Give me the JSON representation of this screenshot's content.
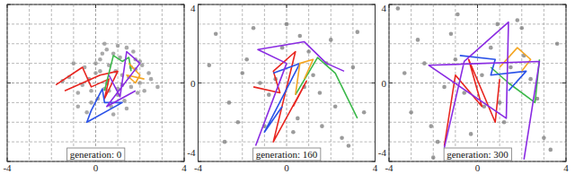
{
  "chart_data": [
    {
      "type": "scatter",
      "annotation": "generation: 0",
      "xlim": [
        -4,
        4
      ],
      "ylim": [
        -4,
        4
      ],
      "xticks": [
        -4,
        0,
        4
      ],
      "yticks": [
        -4,
        0,
        4
      ],
      "grid": true,
      "tick_labels": "x",
      "series": [
        {
          "type": "scatter",
          "color": "#8c8c8c",
          "x": [
            -1.2,
            -0.8,
            -0.5,
            -0.2,
            0.0,
            0.2,
            0.4,
            0.6,
            0.8,
            1.0,
            1.2,
            1.4,
            1.6,
            1.8,
            2.0,
            2.2,
            2.5,
            -1.0,
            -0.6,
            -0.3,
            0.1,
            0.3,
            0.5,
            0.7,
            0.9,
            1.1,
            1.3,
            1.5,
            1.7,
            1.9,
            2.1,
            2.4,
            2.8,
            -1.5,
            -0.4,
            0.2,
            0.6,
            1.0,
            1.4,
            1.8,
            0.0,
            0.8,
            1.6,
            -0.8,
            0.4,
            1.2,
            2.0,
            0.5,
            1.0,
            -0.2
          ],
          "values": [
            0.3,
            -0.5,
            0.8,
            -1.0,
            0.5,
            1.2,
            -0.3,
            0.9,
            1.5,
            -0.6,
            0.4,
            1.8,
            -0.2,
            0.7,
            1.1,
            -0.4,
            0.2,
            1.0,
            -0.1,
            0.2,
            -0.8,
            1.5,
            0.0,
            -1.2,
            0.6,
            1.3,
            -0.9,
            0.3,
            1.6,
            -0.5,
            0.9,
            0.5,
            -0.2,
            0.1,
            -1.5,
            0.6,
            -0.4,
            1.9,
            -1.3,
            1.2,
            1.0,
            -1.6,
            0.8,
            -1.2,
            2.0,
            -0.1,
            0.0,
            1.7,
            -0.3,
            -0.4
          ]
        },
        {
          "type": "line",
          "color": "#e8251f",
          "x": [
            -1.8,
            -0.6,
            -0.2,
            0.6,
            0.4,
            1.0,
            0.2,
            -1.4
          ],
          "values": [
            -0.1,
            0.8,
            -0.2,
            0.2,
            -0.8,
            0.6,
            0.4,
            -0.4
          ]
        },
        {
          "type": "line",
          "color": "#3cb84a",
          "x": [
            0.4,
            0.8,
            1.2,
            1.5,
            1.6
          ],
          "values": [
            -0.4,
            1.4,
            1.1,
            1.3,
            0.6
          ]
        },
        {
          "type": "line",
          "color": "#2a52e8",
          "x": [
            -0.2,
            0.3,
            0.4,
            1.2,
            -0.4,
            -0.2
          ],
          "values": [
            -1.4,
            -0.3,
            -1.0,
            -1.0,
            -2.0,
            -1.4
          ]
        },
        {
          "type": "line",
          "color": "#f5a623",
          "x": [
            1.5,
            2.0,
            1.8,
            1.4,
            2.2
          ],
          "values": [
            1.0,
            0.4,
            0.0,
            0.4,
            0.2
          ]
        },
        {
          "type": "line",
          "color": "#8a2be2",
          "x": [
            0.6,
            1.1,
            1.4,
            2.0,
            0.5,
            1.8
          ],
          "values": [
            0.4,
            -0.7,
            1.6,
            1.0,
            -1.2,
            -0.4
          ]
        }
      ]
    },
    {
      "type": "scatter",
      "annotation": "generation: 160",
      "xlim": [
        -4,
        4
      ],
      "ylim": [
        -4,
        4
      ],
      "xticks": [
        -4,
        0,
        4
      ],
      "yticks": [
        -4,
        0,
        4
      ],
      "grid": true,
      "tick_labels": true,
      "series": [
        {
          "type": "scatter",
          "color": "#7a7a7a",
          "x": [
            -3.2,
            -2.6,
            -2.0,
            -1.5,
            -1.0,
            -0.5,
            0.0,
            0.5,
            1.0,
            1.5,
            2.0,
            2.5,
            3.0,
            3.5,
            -2.8,
            -1.8,
            -0.8,
            0.3,
            1.2,
            2.2,
            3.2,
            -2.2,
            -0.2,
            0.8,
            1.8,
            2.8,
            -1.2,
            0.6,
            1.6,
            -3.5
          ],
          "values": [
            2.5,
            -1.0,
            0.5,
            2.8,
            -2.2,
            0.2,
            3.0,
            -1.8,
            1.6,
            -0.5,
            2.2,
            -2.8,
            0.8,
            -1.5,
            -3.0,
            1.2,
            -0.6,
            -2.5,
            0.4,
            -1.2,
            2.6,
            -2.0,
            1.8,
            -0.2,
            1.0,
            -3.2,
            0.0,
            2.4,
            -2.2,
            0.9
          ]
        },
        {
          "type": "line",
          "color": "#e8251f",
          "x": [
            -1.5,
            -0.3,
            -0.6,
            0.4,
            -0.6,
            0.9,
            0.3
          ],
          "values": [
            -0.2,
            -0.5,
            0.6,
            1.6,
            -3.0,
            0.1,
            -1.2
          ]
        },
        {
          "type": "line",
          "color": "#3cb84a",
          "x": [
            0.4,
            1.4,
            2.2,
            3.2
          ],
          "values": [
            -0.6,
            1.3,
            0.5,
            -1.8
          ]
        },
        {
          "type": "line",
          "color": "#2a52e8",
          "x": [
            -0.6,
            0.6,
            -1.0,
            -0.2
          ],
          "values": [
            0.5,
            1.0,
            -2.5,
            -1.2
          ]
        },
        {
          "type": "line",
          "color": "#f5a623",
          "x": [
            0.8,
            1.2,
            0.6,
            0.4
          ],
          "values": [
            0.2,
            1.2,
            1.0,
            -0.6
          ]
        },
        {
          "type": "line",
          "color": "#8a2be2",
          "x": [
            -1.4,
            0.0,
            -1.3,
            0.8,
            1.8,
            2.6
          ],
          "values": [
            -3.2,
            1.0,
            1.7,
            2.1,
            1.0,
            0.6
          ]
        }
      ]
    },
    {
      "type": "scatter",
      "annotation": "generation: 300",
      "xlim": [
        -4,
        4
      ],
      "ylim": [
        -4,
        4
      ],
      "xticks": [
        -4,
        0,
        4
      ],
      "yticks": [
        -4,
        0,
        4
      ],
      "grid": true,
      "tick_labels": true,
      "series": [
        {
          "type": "scatter",
          "color": "#7a7a7a",
          "x": [
            -3.6,
            -3.0,
            -2.4,
            -1.8,
            -1.2,
            -0.6,
            0.0,
            0.6,
            1.2,
            1.8,
            2.4,
            3.0,
            3.6,
            -3.3,
            -2.1,
            -0.9,
            0.3,
            1.5,
            2.7,
            -2.7,
            -1.5,
            -0.3,
            0.9,
            2.1,
            3.3,
            -1.0,
            1.0,
            -2.0,
            2.0,
            0.2
          ],
          "values": [
            3.8,
            -1.5,
            1.0,
            -3.0,
            2.5,
            -0.5,
            -3.5,
            1.8,
            -2.0,
            3.2,
            0.2,
            -2.8,
            2.0,
            0.5,
            -2.2,
            3.5,
            -1.2,
            0.8,
            -0.8,
            2.2,
            -0.2,
            -2.6,
            3.0,
            1.4,
            -3.4,
            1.2,
            -1.0,
            -3.8,
            2.8,
            0.4
          ]
        },
        {
          "type": "line",
          "color": "#e8251f",
          "x": [
            -1.5,
            -1.0,
            0.2,
            -0.4,
            0.8,
            1.0
          ],
          "values": [
            -3.2,
            0.4,
            -1.2,
            1.2,
            -2.0,
            0.2
          ]
        },
        {
          "type": "line",
          "color": "#3cb84a",
          "x": [
            0.6,
            1.4,
            2.6,
            2.8
          ],
          "values": [
            0.8,
            0.0,
            -1.0,
            1.2
          ]
        },
        {
          "type": "line",
          "color": "#2a52e8",
          "x": [
            -0.8,
            0.8,
            0.6,
            2.2,
            1.4
          ],
          "values": [
            1.4,
            1.2,
            0.4,
            0.6,
            -0.4
          ]
        },
        {
          "type": "line",
          "color": "#f5a623",
          "x": [
            1.0,
            1.8,
            2.4,
            2.0
          ],
          "values": [
            0.8,
            1.8,
            1.2,
            0.6
          ]
        },
        {
          "type": "line",
          "color": "#8a2be2",
          "x": [
            -1.5,
            -0.6,
            1.4,
            1.3,
            -2.2,
            2.8,
            2.1
          ],
          "values": [
            -3.3,
            1.1,
            3.1,
            -1.8,
            0.9,
            1.1,
            -3.9
          ]
        }
      ]
    }
  ]
}
